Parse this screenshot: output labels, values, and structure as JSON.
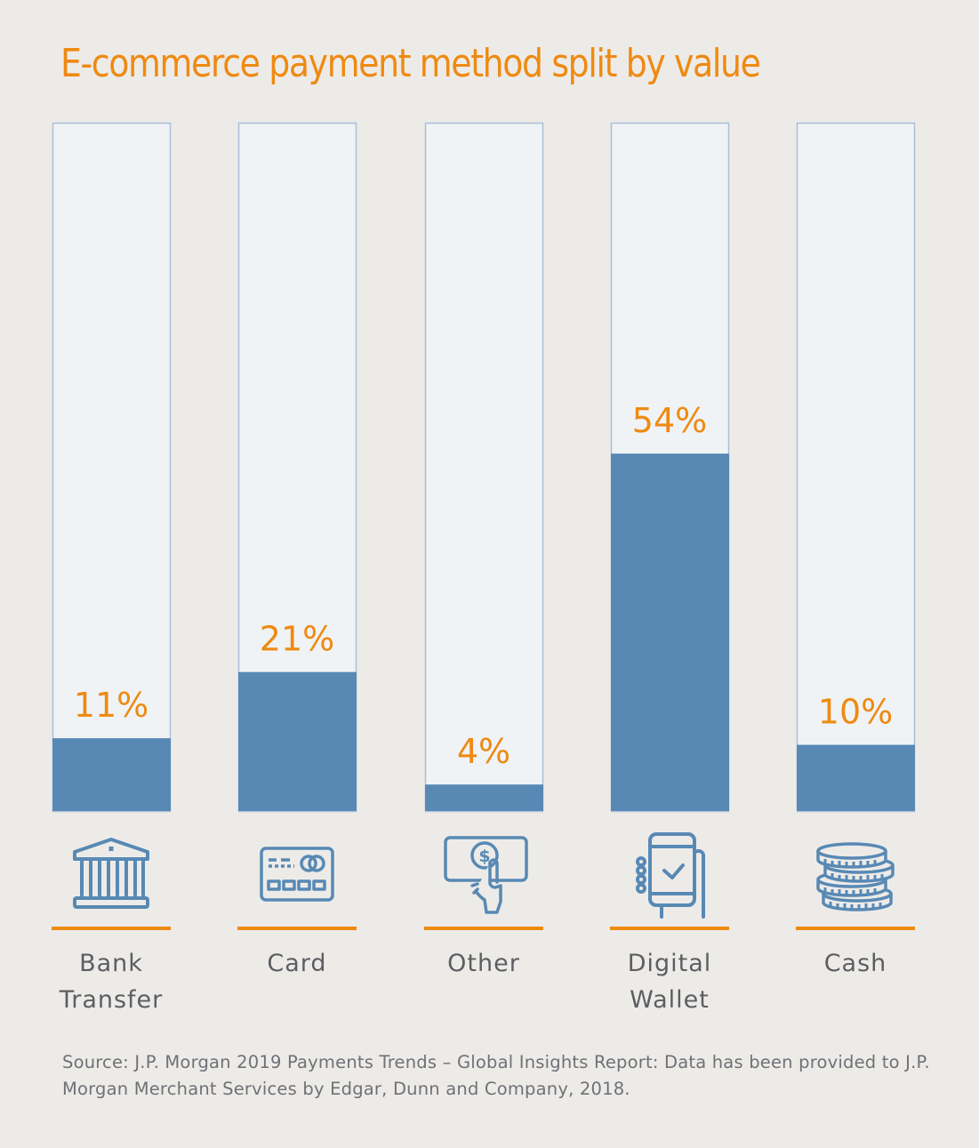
{
  "chart_data": {
    "type": "bar",
    "title": "E-commerce payment method split by value",
    "categories": [
      "Bank Transfer",
      "Card",
      "Other",
      "Digital Wallet",
      "Cash"
    ],
    "category_lines": [
      [
        "Bank",
        "Transfer"
      ],
      [
        "Card"
      ],
      [
        "Other"
      ],
      [
        "Digital",
        "Wallet"
      ],
      [
        "Cash"
      ]
    ],
    "values": [
      11,
      21,
      4,
      54,
      10
    ],
    "value_labels": [
      "11%",
      "21%",
      "4%",
      "54%",
      "10%"
    ],
    "icons": [
      "bank-icon",
      "credit-card-icon",
      "hand-paying-icon",
      "mobile-wallet-icon",
      "coin-stack-icon"
    ],
    "unit": "%",
    "xlabel": "",
    "ylabel": "",
    "ylim": [
      0,
      104
    ],
    "grid": false,
    "legend": "none"
  },
  "source": "Source: J.P. Morgan 2019 Payments Trends – Global Insights Report: Data has been provided to J.P. Morgan Merchant Services by Edgar, Dunn and Company, 2018.",
  "colors": {
    "background": "#edebe8",
    "bar_track": "#f0f3f6",
    "bar_track_border": "#a9c0d8",
    "bar_fill": "#5889b4",
    "accent": "#ee8a12",
    "icon": "#5889b4",
    "label_text": "#5d5d62"
  }
}
